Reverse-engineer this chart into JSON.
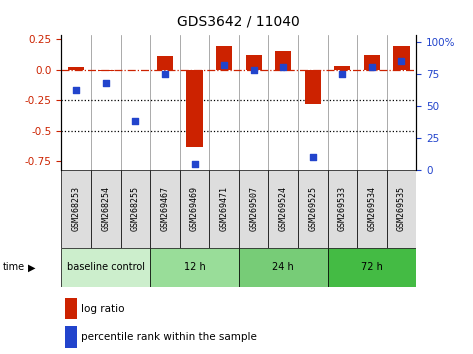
{
  "title": "GDS3642 / 11040",
  "samples": [
    "GSM268253",
    "GSM268254",
    "GSM268255",
    "GSM269467",
    "GSM269469",
    "GSM269471",
    "GSM269507",
    "GSM269524",
    "GSM269525",
    "GSM269533",
    "GSM269534",
    "GSM269535"
  ],
  "log_ratio": [
    0.02,
    -0.01,
    -0.005,
    0.11,
    -0.63,
    0.19,
    0.12,
    0.15,
    -0.28,
    0.03,
    0.12,
    0.19
  ],
  "percentile_rank": [
    62,
    68,
    38,
    75,
    5,
    82,
    78,
    80,
    10,
    75,
    80,
    85
  ],
  "groups": [
    {
      "label": "baseline control",
      "start": 0,
      "end": 3
    },
    {
      "label": "12 h",
      "start": 3,
      "end": 6
    },
    {
      "label": "24 h",
      "start": 6,
      "end": 9
    },
    {
      "label": "72 h",
      "start": 9,
      "end": 12
    }
  ],
  "group_colors": [
    "#cceecc",
    "#99dd99",
    "#77cc77",
    "#44bb44"
  ],
  "ylim_left": [
    -0.82,
    0.28
  ],
  "ylim_right": [
    0,
    105
  ],
  "yticks_left": [
    0.25,
    0.0,
    -0.25,
    -0.5,
    -0.75
  ],
  "yticks_right": [
    100,
    75,
    50,
    25,
    0
  ],
  "bar_color": "#cc2200",
  "dot_color": "#2244cc",
  "dotted_lines": [
    -0.25,
    -0.5
  ],
  "bar_width": 0.55,
  "cell_border_color": "#888888",
  "sample_bg_color": "#dddddd"
}
